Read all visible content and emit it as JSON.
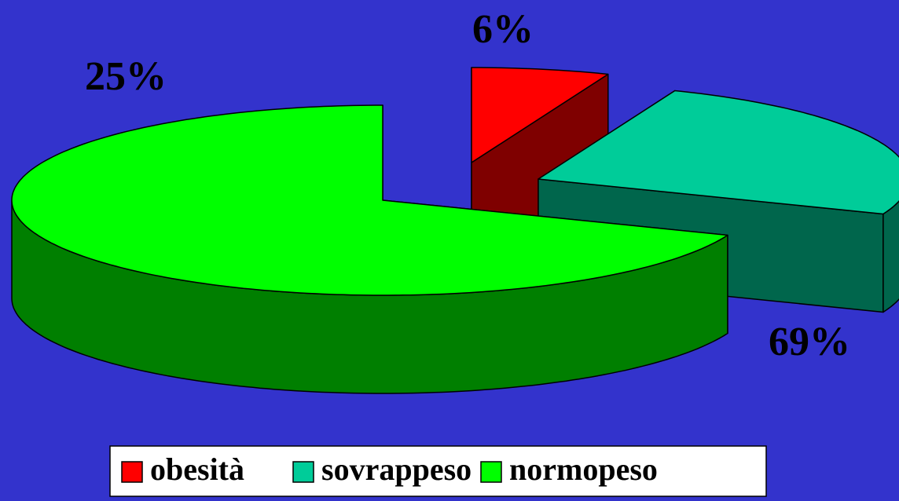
{
  "chart_data": {
    "type": "pie",
    "categories": [
      "obesità",
      "sovrappeso",
      "normopeso"
    ],
    "values": [
      6,
      25,
      69
    ],
    "value_labels": [
      "6%",
      "25%",
      "69%"
    ],
    "colors": [
      "#ff0000",
      "#00cc99",
      "#00ff00"
    ],
    "legend": "bottom"
  }
}
